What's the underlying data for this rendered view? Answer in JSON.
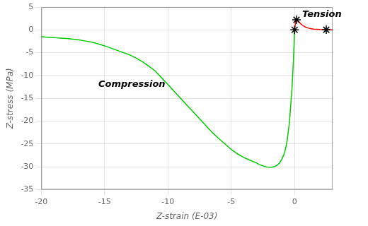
{
  "chart_data": {
    "type": "line",
    "xlabel": "Z-strain (E-03)",
    "ylabel": "Z-stress (MPa)",
    "xlim": [
      -20,
      3
    ],
    "ylim": [
      -35,
      5
    ],
    "xticks": [
      -20,
      -15,
      -10,
      -5,
      0
    ],
    "yticks": [
      -35,
      -30,
      -25,
      -20,
      -15,
      -10,
      -5,
      0,
      5
    ],
    "grid": true,
    "series": [
      {
        "color": "#00cc00",
        "x": [
          -20.0,
          -19.5,
          -19.0,
          -18.5,
          -18.0,
          -17.5,
          -17.0,
          -16.5,
          -16.0,
          -15.5,
          -15.0,
          -14.5,
          -14.0,
          -13.5,
          -13.0,
          -12.5,
          -12.0,
          -11.5,
          -11.0,
          -10.5,
          -10.0,
          -9.5,
          -9.0,
          -8.5,
          -8.0,
          -7.5,
          -7.0,
          -6.5,
          -6.0,
          -5.5,
          -5.0,
          -4.5,
          -4.0,
          -3.5,
          -3.0,
          -2.8,
          -2.6,
          -2.4,
          -2.2,
          -2.0,
          -1.8,
          -1.6,
          -1.4,
          -1.2,
          -1.0,
          -0.8,
          -0.6,
          -0.4,
          -0.2,
          -0.1,
          -0.05,
          0.0
        ],
        "values": [
          -1.5,
          -1.6,
          -1.7,
          -1.8,
          -1.9,
          -2.05,
          -2.2,
          -2.45,
          -2.7,
          -3.1,
          -3.5,
          -4.0,
          -4.5,
          -5.0,
          -5.5,
          -6.2,
          -7.0,
          -8.0,
          -9.0,
          -10.5,
          -12.0,
          -13.5,
          -15.0,
          -16.5,
          -18.0,
          -19.5,
          -21.0,
          -22.5,
          -23.8,
          -25.0,
          -26.2,
          -27.2,
          -28.0,
          -28.6,
          -29.2,
          -29.5,
          -29.7,
          -29.9,
          -30.05,
          -30.1,
          -30.1,
          -30.0,
          -29.7,
          -29.2,
          -28.3,
          -27.0,
          -24.5,
          -20.0,
          -12.5,
          -7.0,
          -3.5,
          0.0
        ]
      },
      {
        "color": "#ff0000",
        "x": [
          0.0,
          0.05,
          0.1,
          0.15,
          0.2,
          0.25,
          0.3,
          0.4,
          0.5,
          0.6,
          0.8,
          1.0,
          1.2,
          1.5,
          2.0,
          2.5,
          3.0
        ],
        "values": [
          0.0,
          1.1,
          1.9,
          2.2,
          2.15,
          2.05,
          1.9,
          1.6,
          1.3,
          1.05,
          0.7,
          0.45,
          0.3,
          0.18,
          0.07,
          0.03,
          0.01
        ]
      },
      {
        "type": "scatter",
        "marker": "star",
        "color": "#000000",
        "x": [
          0.0,
          0.15,
          2.5
        ],
        "values": [
          0.0,
          2.2,
          0.03
        ]
      }
    ],
    "annotations": [
      {
        "text": "Compression",
        "x": -15.5,
        "y": -12.5
      },
      {
        "text": "Tension",
        "x": 0.6,
        "y": 2.8
      }
    ]
  }
}
